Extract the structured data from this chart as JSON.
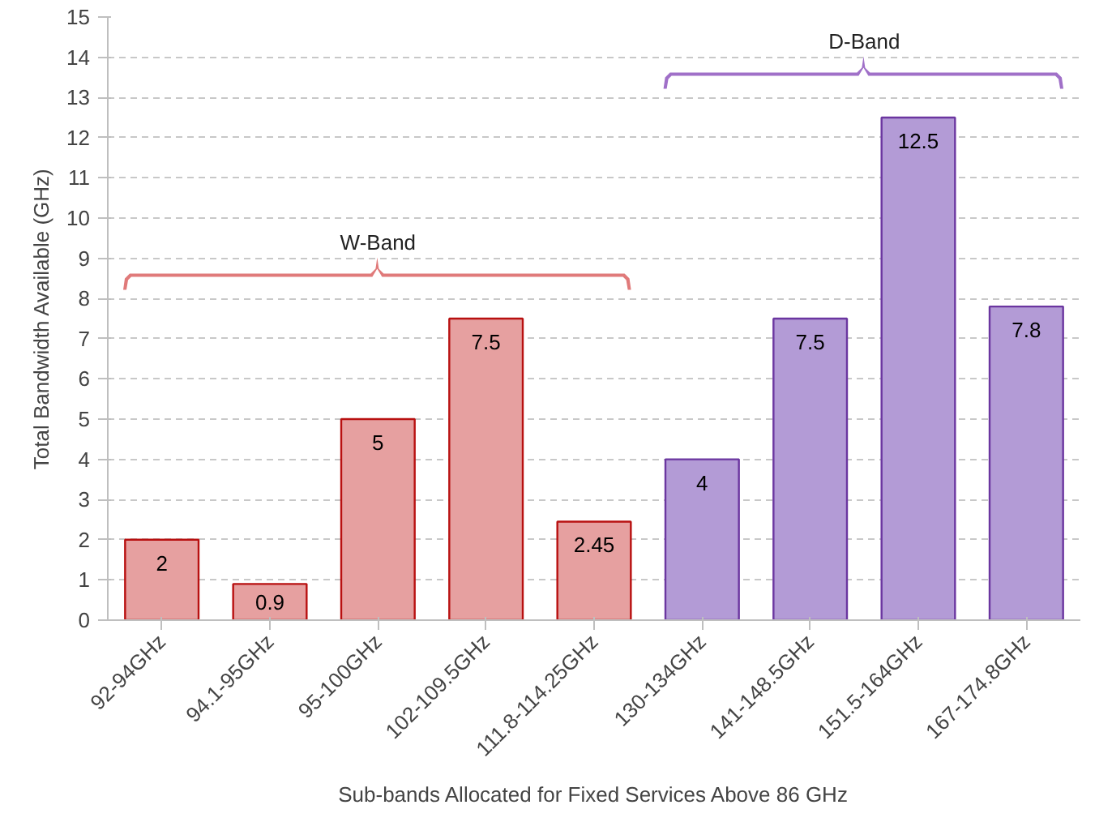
{
  "chart_data": {
    "type": "bar",
    "xlabel": "Sub-bands Allocated for Fixed Services Above 86 GHz",
    "ylabel": "Total Bandwidth Available (GHz)",
    "categories": [
      "92-94GHz",
      "94.1-95GHz",
      "95-100GHz",
      "102-109.5GHz",
      "111.8-114.25GHz",
      "130-134GHz",
      "141-148.5GHz",
      "151.5-164GHz",
      "167-174.8GHz"
    ],
    "values": [
      2,
      0.9,
      5,
      7.5,
      2.45,
      4,
      7.5,
      12.5,
      7.8
    ],
    "colors": [
      "#e6a0a0",
      "#e6a0a0",
      "#e6a0a0",
      "#e6a0a0",
      "#e6a0a0",
      "#b39bd6",
      "#b39bd6",
      "#b39bd6",
      "#b39bd6"
    ],
    "ylim": [
      0,
      15
    ],
    "yticks": [
      0,
      1,
      2,
      3,
      4,
      5,
      6,
      7,
      8,
      9,
      10,
      11,
      12,
      13,
      14,
      15
    ],
    "grid": "y",
    "data_labels": true,
    "annotations": [
      "W-Band",
      "D-Band"
    ]
  }
}
